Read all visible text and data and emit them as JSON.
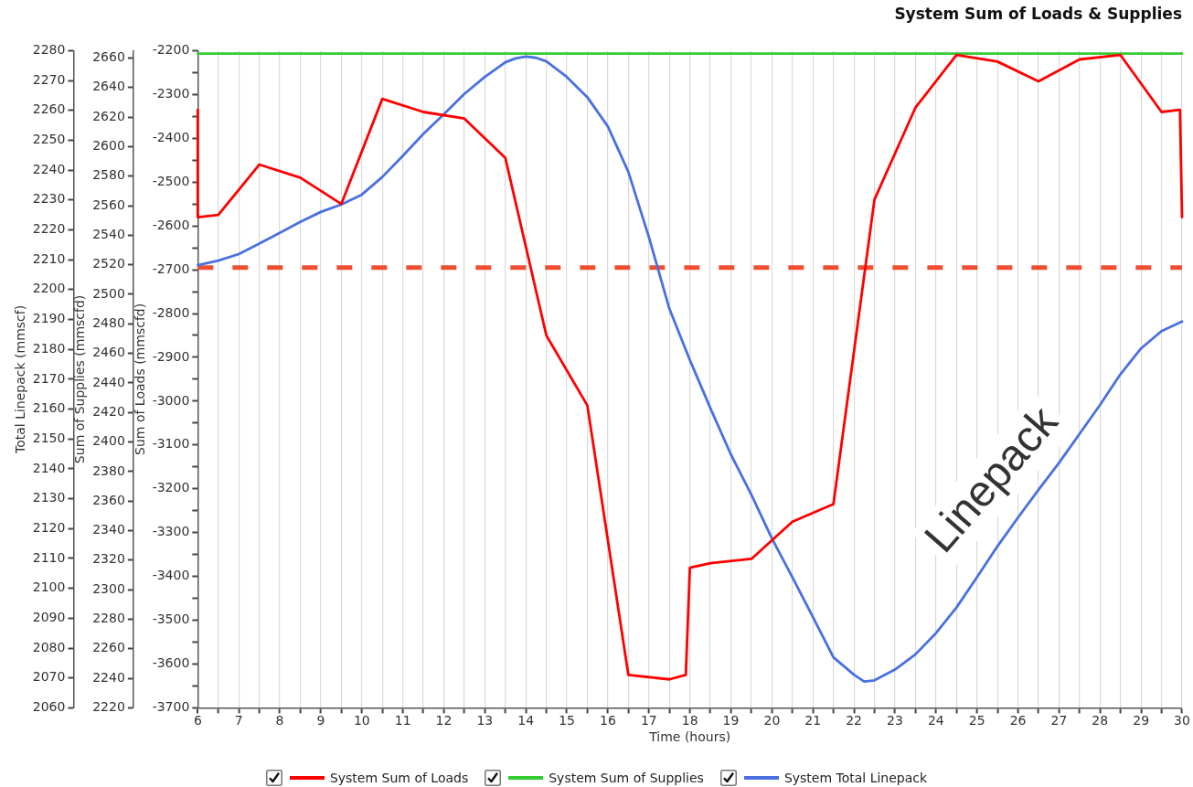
{
  "chart_data": {
    "type": "line",
    "title": "System Sum of Loads & Supplies",
    "xlabel": "Time (hours)",
    "ylabel": "Sum of Loads (mmscfd)",
    "y2label": "Total Linepack (mmscf)",
    "y3label": "Sum of Supplies (mmscfd)",
    "xlim": [
      6,
      30
    ],
    "xticks": [
      6,
      {
        "value": 6.5,
        "label": null
      },
      7,
      {
        "value": 7.5,
        "label": null
      },
      8,
      {
        "value": 8.5,
        "label": null
      },
      9,
      {
        "value": 9.5,
        "label": null
      },
      10,
      {
        "value": 10.5,
        "label": null
      },
      11,
      {
        "value": 11.5,
        "label": null
      },
      12,
      {
        "value": 12.5,
        "label": null
      },
      13,
      {
        "value": 13.5,
        "label": null
      },
      14,
      {
        "value": 14.5,
        "label": null
      },
      15,
      {
        "value": 15.5,
        "label": null
      },
      16,
      {
        "value": 16.5,
        "label": null
      },
      17,
      {
        "value": 17.5,
        "label": null
      },
      18,
      {
        "value": 18.5,
        "label": null
      },
      19,
      {
        "value": 19.5,
        "label": null
      },
      20,
      {
        "value": 20.5,
        "label": null
      },
      21,
      {
        "value": 21.5,
        "label": null
      },
      22,
      {
        "value": 22.5,
        "label": null
      },
      23,
      {
        "value": 23.5,
        "label": null
      },
      24,
      {
        "value": 24.5,
        "label": null
      },
      25,
      {
        "value": 25.5,
        "label": null
      },
      26,
      {
        "value": 26.5,
        "label": null
      },
      27,
      {
        "value": 27.5,
        "label": null
      },
      28,
      {
        "value": 28.5,
        "label": null
      },
      29,
      {
        "value": 29.5,
        "label": null
      },
      30
    ],
    "ylim": [
      -3700,
      -2200
    ],
    "yticks": [
      -3700,
      {
        "value": -3650,
        "label": null
      },
      -3600,
      {
        "value": -3550,
        "label": null
      },
      -3500,
      {
        "value": -3450,
        "label": null
      },
      -3400,
      {
        "value": -3350,
        "label": null
      },
      -3300,
      {
        "value": -3250,
        "label": null
      },
      -3200,
      {
        "value": -3150,
        "label": null
      },
      -3100,
      {
        "value": -3050,
        "label": null
      },
      -3000,
      {
        "value": -2950,
        "label": null
      },
      -2900,
      {
        "value": -2850,
        "label": null
      },
      -2800,
      {
        "value": -2750,
        "label": null
      },
      -2700,
      {
        "value": -2650,
        "label": null
      },
      -2600,
      {
        "value": -2550,
        "label": null
      },
      -2500,
      {
        "value": -2450,
        "label": null
      },
      -2400,
      {
        "value": -2350,
        "label": null
      },
      -2300,
      {
        "value": -2250,
        "label": null
      },
      -2200
    ],
    "y2lim": [
      2060,
      2280
    ],
    "y2ticks": [
      2060,
      2070,
      2080,
      2090,
      2100,
      2110,
      2120,
      2130,
      2140,
      2150,
      2160,
      2170,
      2180,
      2190,
      2200,
      2210,
      2220,
      2230,
      2240,
      2250,
      2260,
      2270,
      2280
    ],
    "y3lim": [
      2220,
      2665
    ],
    "y3ticks": [
      2220,
      2240,
      2260,
      2280,
      2300,
      2320,
      2340,
      2360,
      2380,
      2400,
      2420,
      2440,
      2460,
      2480,
      2500,
      2520,
      2540,
      2560,
      2580,
      2600,
      2620,
      2640,
      2660
    ],
    "series": [
      {
        "name": "System Sum of Loads",
        "color": "#ff0000",
        "x": [
          6,
          6,
          6.5,
          7.5,
          8.5,
          9.5,
          10.5,
          11.5,
          12.5,
          13.5,
          14.5,
          15.5,
          16.5,
          17.5,
          17.9,
          18,
          18.5,
          19.5,
          20.5,
          21.5,
          22.5,
          23.5,
          24.5,
          25.5,
          26.5,
          27.5,
          28.5,
          29.5,
          29.95,
          30
        ],
        "values": [
          -2335,
          -2580,
          -2575,
          -2460,
          -2490,
          -2550,
          -2310,
          -2340,
          -2355,
          -2445,
          -2850,
          -3010,
          -3625,
          -3635,
          -3625,
          -3380,
          -3370,
          -3360,
          -3275,
          -3235,
          -2540,
          -2330,
          -2210,
          -2225,
          -2270,
          -2220,
          -2210,
          -2340,
          -2335,
          -2580
        ]
      },
      {
        "name": "System Sum of Supplies",
        "color": "#33cc33",
        "axis": "y3",
        "x": [
          6,
          30
        ],
        "values": [
          2663,
          2663
        ]
      },
      {
        "name": "System Total Linepack",
        "color": "#4a70e0",
        "axis": "y2",
        "x": [
          6,
          6.5,
          7,
          7.5,
          8,
          8.5,
          9,
          9.5,
          10,
          10.5,
          11,
          11.5,
          12,
          12.5,
          13,
          13.5,
          13.75,
          14,
          14.25,
          14.5,
          15,
          15.5,
          16,
          16.5,
          17,
          17.5,
          18,
          18.5,
          19,
          19.5,
          20,
          20.5,
          21,
          21.5,
          22,
          22.25,
          22.5,
          23,
          23.5,
          24,
          24.5,
          25,
          25.5,
          26,
          26.5,
          27,
          27.5,
          28,
          28.5,
          29,
          29.5,
          30
        ],
        "values": [
          2208.2,
          2209.7,
          2211.9,
          2215.4,
          2219.0,
          2222.7,
          2226.0,
          2228.5,
          2231.8,
          2237.7,
          2244.8,
          2252.1,
          2258.7,
          2265.5,
          2271.2,
          2276.1,
          2277.4,
          2278.0,
          2277.6,
          2276.4,
          2271.2,
          2264.4,
          2254.6,
          2239.4,
          2217.6,
          2193.6,
          2176.4,
          2160.3,
          2144.8,
          2131.3,
          2116.7,
          2103.7,
          2090.4,
          2076.9,
          2071.1,
          2068.8,
          2069.2,
          2072.8,
          2077.9,
          2085.0,
          2093.6,
          2103.7,
          2114.1,
          2123.7,
          2133.0,
          2142.0,
          2151.7,
          2161.4,
          2171.7,
          2180.3,
          2186.1,
          2189.3
        ]
      }
    ],
    "ref_lines": [
      {
        "axis": "y",
        "value": -2695,
        "color": "#f04e30",
        "line_style": "dashed"
      }
    ],
    "annotations": [
      "Linepack"
    ],
    "grid": "x",
    "legend": "bottom",
    "marker": "none"
  }
}
